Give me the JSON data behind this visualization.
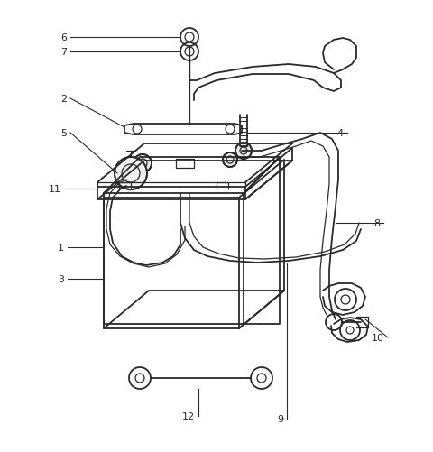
{
  "background_color": "#ffffff",
  "line_color": "#2a2a2a",
  "label_color": "#000000",
  "figsize": [
    4.8,
    5.02
  ],
  "dpi": 100
}
